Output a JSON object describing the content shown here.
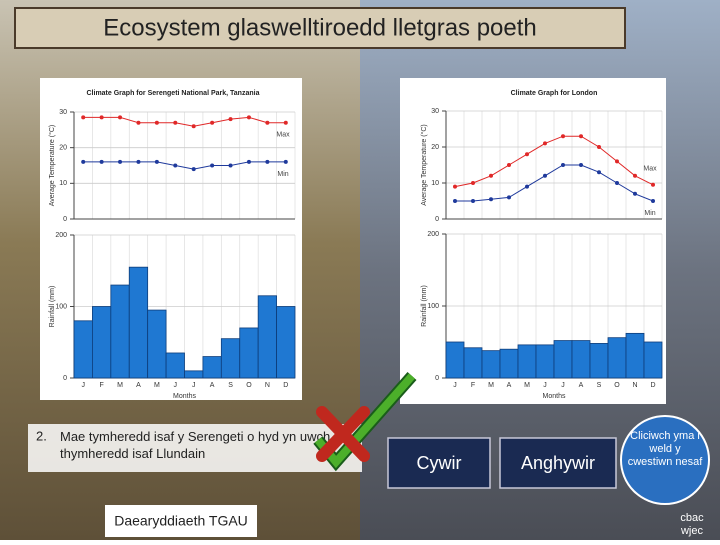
{
  "slide_title": "Ecosystem glaswelltiroedd lletgras poeth",
  "question": {
    "number": "2.",
    "text": "Mae tymheredd isaf y Serengeti o hyd yn uwch na thymheredd isaf Llundain"
  },
  "buttons": {
    "correct": "Cywir",
    "incorrect": "Anghywir",
    "next": "Cliciwch yma i weld y cwestiwn nesaf"
  },
  "footer": "Daearyddiaeth TGAU",
  "logo": {
    "top": "cbac",
    "bottom": "wjec"
  },
  "chart_data": [
    {
      "type": "line",
      "title": "Climate Graph for Serengeti National Park, Tanzania",
      "categories": [
        "J",
        "F",
        "M",
        "A",
        "M",
        "J",
        "J",
        "A",
        "S",
        "O",
        "N",
        "D"
      ],
      "ylabel": "Average Temperature (°C)",
      "ylim": [
        0,
        30
      ],
      "yticks": [
        0,
        10,
        20,
        30
      ],
      "grid": true,
      "series": [
        {
          "name": "Max",
          "color": "#e02828",
          "values": [
            28.5,
            28.5,
            28.5,
            27,
            27,
            27,
            26,
            27,
            28,
            28.5,
            27,
            27
          ]
        },
        {
          "name": "Min",
          "color": "#1f3a9c",
          "values": [
            16,
            16,
            16,
            16,
            16,
            15,
            14,
            15,
            15,
            16,
            16,
            16
          ]
        }
      ]
    },
    {
      "type": "bar",
      "categories": [
        "J",
        "F",
        "M",
        "A",
        "M",
        "J",
        "J",
        "A",
        "S",
        "O",
        "N",
        "D"
      ],
      "ylabel": "Rainfall (mm)",
      "xlabel": "Months",
      "ylim": [
        0,
        200
      ],
      "yticks": [
        0,
        100,
        200
      ],
      "grid": true,
      "color": "#1f78d2",
      "values": [
        80,
        100,
        130,
        155,
        95,
        35,
        10,
        30,
        55,
        70,
        115,
        100
      ]
    },
    {
      "type": "line",
      "title": "Climate Graph for London",
      "categories": [
        "J",
        "F",
        "M",
        "A",
        "M",
        "J",
        "J",
        "A",
        "S",
        "O",
        "N",
        "D"
      ],
      "ylabel": "Average Temperature (°C)",
      "ylim": [
        0,
        30
      ],
      "yticks": [
        0,
        10,
        20,
        30
      ],
      "grid": true,
      "series": [
        {
          "name": "Max",
          "color": "#e02828",
          "values": [
            9,
            10,
            12,
            15,
            18,
            21,
            23,
            23,
            20,
            16,
            12,
            9.5
          ]
        },
        {
          "name": "Min",
          "color": "#1f3a9c",
          "values": [
            5,
            5,
            5.5,
            6,
            9,
            12,
            15,
            15,
            13,
            10,
            7,
            5
          ]
        }
      ]
    },
    {
      "type": "bar",
      "categories": [
        "J",
        "F",
        "M",
        "A",
        "M",
        "J",
        "J",
        "A",
        "S",
        "O",
        "N",
        "D"
      ],
      "ylabel": "Rainfall (mm)",
      "xlabel": "Months",
      "ylim": [
        0,
        200
      ],
      "yticks": [
        0,
        100,
        200
      ],
      "grid": true,
      "color": "#1f78d2",
      "values": [
        50,
        42,
        38,
        40,
        46,
        46,
        52,
        52,
        48,
        56,
        62,
        50
      ]
    }
  ]
}
